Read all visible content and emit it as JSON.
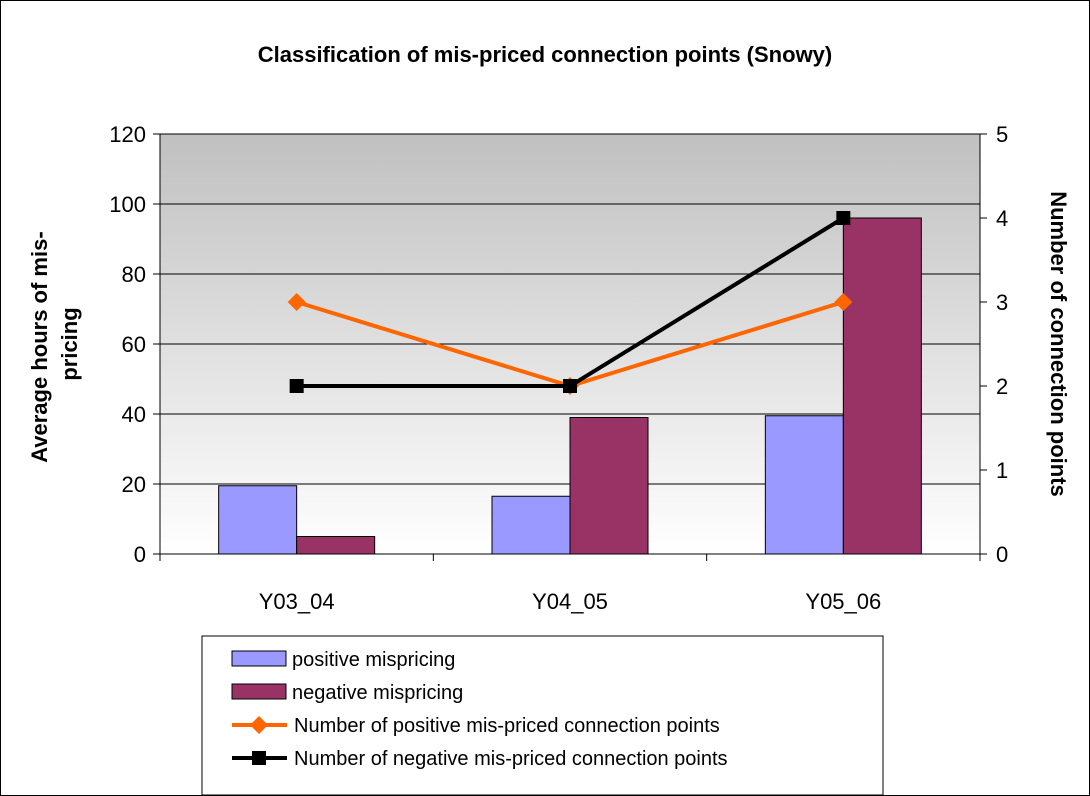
{
  "chart_data": {
    "type": "bar",
    "title": "Classification of mis-priced connection points (Snowy)",
    "categories": [
      "Y03_04",
      "Y04_05",
      "Y05_06"
    ],
    "ylabel_left": "Average hours of mis-pricing",
    "ylabel_left_lines": [
      "Average hours of mis-",
      "pricing"
    ],
    "ylabel_right": "Number of connection points",
    "ylim_left": [
      0,
      120
    ],
    "yticks_left": [
      "0",
      "20",
      "40",
      "60",
      "80",
      "100",
      "120"
    ],
    "ylim_right": [
      0,
      5
    ],
    "yticks_right": [
      "0",
      "1",
      "2",
      "3",
      "4",
      "5"
    ],
    "grid": true,
    "legend_position": "bottom",
    "bar_series": [
      {
        "name": "positive mispricing",
        "axis": "left",
        "color": "#9999ff",
        "values": [
          19.5,
          16.5,
          39.5
        ]
      },
      {
        "name": "negative mispricing",
        "axis": "left",
        "color": "#993366",
        "values": [
          5,
          39,
          96
        ]
      }
    ],
    "line_series": [
      {
        "name": "Number of positive mis-priced connection points",
        "axis": "right",
        "color": "#ff6600",
        "marker": "diamond",
        "values": [
          3,
          2,
          3
        ]
      },
      {
        "name": "Number of negative mis-priced connection points",
        "axis": "right",
        "color": "#000000",
        "marker": "square",
        "values": [
          2,
          2,
          4
        ]
      }
    ]
  }
}
